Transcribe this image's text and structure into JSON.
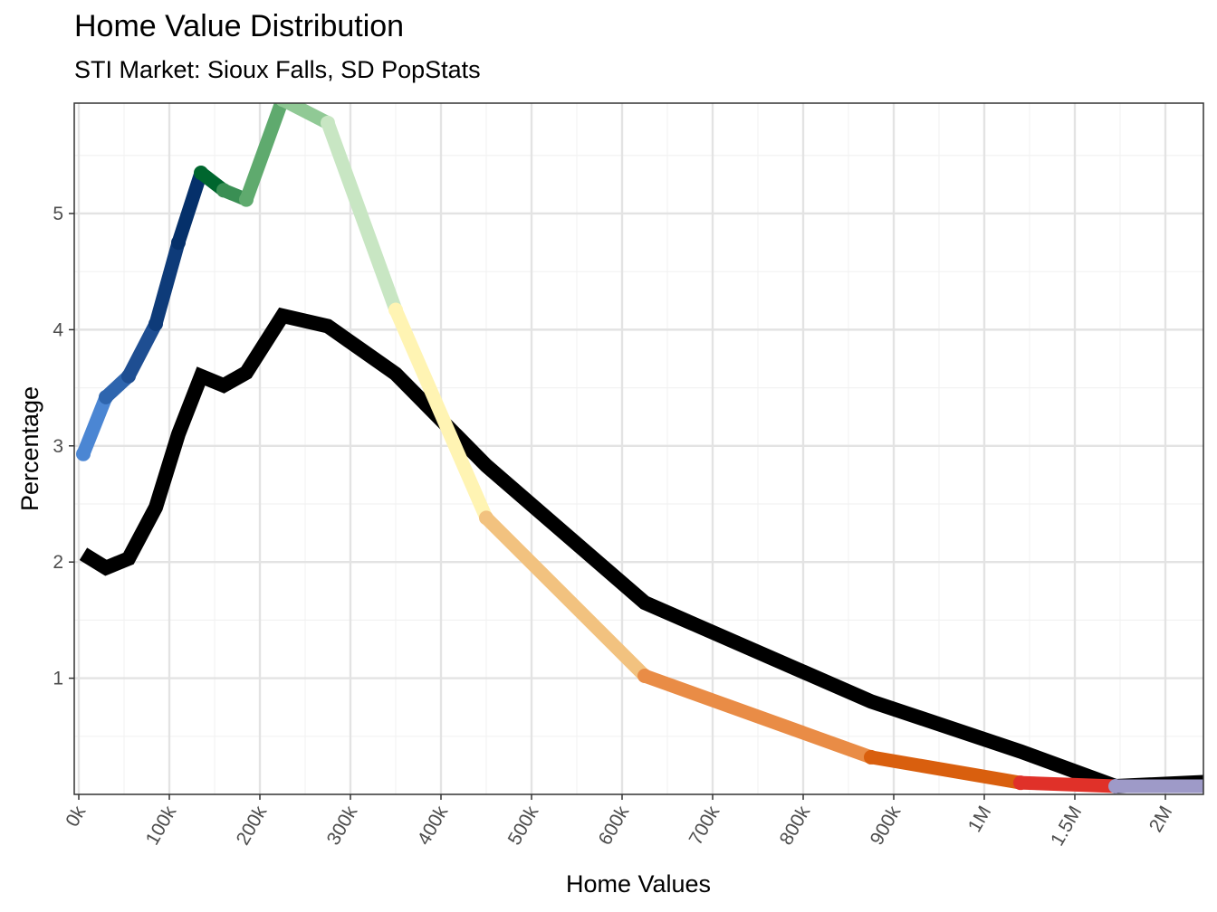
{
  "title": "Home Value Distribution",
  "subtitle": "STI Market: Sioux Falls, SD PopStats",
  "chart_data": {
    "type": "line",
    "xlabel": "Home Values",
    "ylabel": "Percentage",
    "x_tick_labels": [
      "0k",
      "100k",
      "200k",
      "300k",
      "400k",
      "500k",
      "600k",
      "700k",
      "800k",
      "900k",
      "1M",
      "1.5M",
      "2M"
    ],
    "y_ticks": [
      1,
      2,
      3,
      4,
      5
    ],
    "ylim": [
      0,
      5.95
    ],
    "grid": true,
    "legend": "none",
    "x_categories": [
      "5k",
      "30k",
      "55k",
      "85k",
      "110k",
      "135k",
      "160k",
      "185k",
      "225k",
      "275k",
      "350k",
      "450k",
      "625k",
      "875k",
      "1.25M",
      "1.75M",
      "2.25M"
    ],
    "series": [
      {
        "color": "#000000",
        "values": [
          2.07,
          1.95,
          2.03,
          2.47,
          3.1,
          3.6,
          3.52,
          3.63,
          4.12,
          4.03,
          3.62,
          2.83,
          1.65,
          0.8,
          0.37,
          0.07,
          0.11
        ]
      },
      {
        "values": [
          2.93,
          3.42,
          3.6,
          4.05,
          4.75,
          5.35,
          5.2,
          5.12,
          5.98,
          5.78,
          4.17,
          2.38,
          1.02,
          0.32,
          0.1,
          0.07,
          0.07
        ],
        "segment_colors": [
          "#4b86d3",
          "#2e65ae",
          "#1e4e92",
          "#0e3b79",
          "#05306a",
          "#00662e",
          "#3a8f54",
          "#5faa6e",
          "#90c995",
          "#c8e6c3",
          "#fff4b3",
          "#f2c27f",
          "#e98c46",
          "#d95f0e",
          "#e03129",
          "#9e9ac8",
          "#6a51a3"
        ]
      }
    ]
  }
}
